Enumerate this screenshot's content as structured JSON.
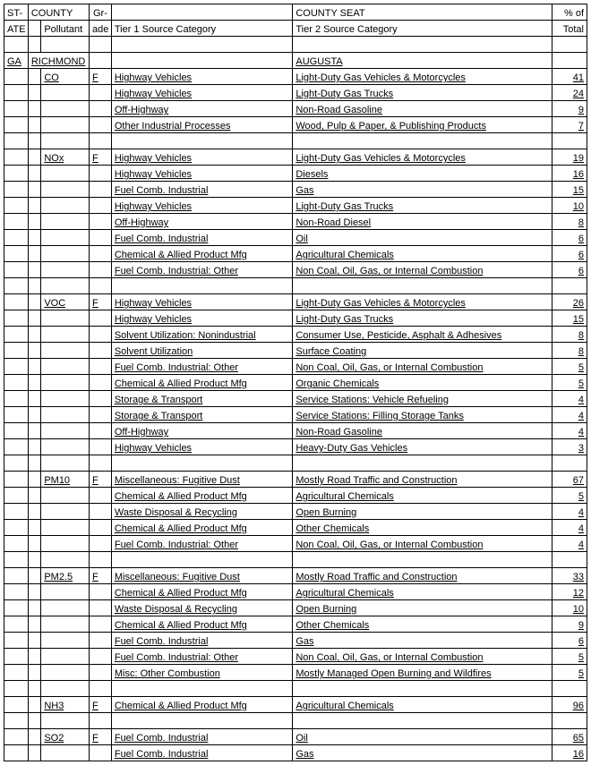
{
  "headers": {
    "state1": "ST-",
    "state2": "ATE",
    "county": "COUNTY",
    "pollutant": "Pollutant",
    "grade1": "Gr-",
    "grade2": "ade",
    "tier1": "Tier 1 Source Category",
    "county_seat": "COUNTY SEAT",
    "tier2": "Tier 2 Source Category",
    "pct1": "% of",
    "pct2": "Total"
  },
  "state": "GA",
  "county": "RICHMOND",
  "county_seat": "AUGUSTA",
  "groups": [
    {
      "pollutant": "CO",
      "grade": "F",
      "rows": [
        {
          "t1": "Highway Vehicles",
          "t2": "Light-Duty Gas Vehicles & Motorcycles",
          "p": "41"
        },
        {
          "t1": "Highway Vehicles",
          "t2": "Light-Duty Gas Trucks",
          "p": "24"
        },
        {
          "t1": "Off-Highway",
          "t2": "Non-Road Gasoline",
          "p": "9"
        },
        {
          "t1": "Other Industrial Processes",
          "t2": "Wood, Pulp & Paper, & Publishing Products",
          "p": "7"
        }
      ]
    },
    {
      "pollutant": "NOx",
      "grade": "F",
      "rows": [
        {
          "t1": "Highway Vehicles",
          "t2": "Light-Duty Gas Vehicles & Motorcycles",
          "p": "19"
        },
        {
          "t1": "Highway Vehicles",
          "t2": "Diesels",
          "p": "16"
        },
        {
          "t1": "Fuel Comb. Industrial",
          "t2": "Gas",
          "p": "15"
        },
        {
          "t1": "Highway Vehicles",
          "t2": "Light-Duty Gas Trucks",
          "p": "10"
        },
        {
          "t1": "Off-Highway",
          "t2": "Non-Road Diesel",
          "p": "8"
        },
        {
          "t1": "Fuel Comb. Industrial",
          "t2": "Oil",
          "p": "6"
        },
        {
          "t1": "Chemical & Allied Product Mfg",
          "t2": "Agricultural Chemicals",
          "p": "6"
        },
        {
          "t1": "Fuel Comb. Industrial: Other",
          "t2": "Non Coal, Oil, Gas, or Internal Combustion",
          "p": "6"
        }
      ]
    },
    {
      "pollutant": "VOC",
      "grade": "F",
      "rows": [
        {
          "t1": "Highway Vehicles",
          "t2": "Light-Duty Gas Vehicles & Motorcycles",
          "p": "26"
        },
        {
          "t1": "Highway Vehicles",
          "t2": "Light-Duty Gas Trucks",
          "p": "15"
        },
        {
          "t1": "Solvent Utilization: Nonindustrial",
          "t2": "Consumer Use, Pesticide, Asphalt & Adhesives",
          "p": "8"
        },
        {
          "t1": "Solvent Utilization",
          "t2": "Surface Coating",
          "p": "8"
        },
        {
          "t1": "Fuel Comb. Industrial: Other",
          "t2": "Non Coal, Oil, Gas, or Internal Combustion",
          "p": "5"
        },
        {
          "t1": "Chemical & Allied Product Mfg",
          "t2": "Organic Chemicals",
          "p": "5"
        },
        {
          "t1": "Storage & Transport",
          "t2": "Service Stations: Vehicle Refueling",
          "p": "4"
        },
        {
          "t1": "Storage & Transport",
          "t2": "Service Stations: Filling Storage Tanks",
          "p": "4"
        },
        {
          "t1": "Off-Highway",
          "t2": "Non-Road Gasoline",
          "p": "4"
        },
        {
          "t1": "Highway Vehicles",
          "t2": "Heavy-Duty Gas Vehicles",
          "p": "3"
        }
      ]
    },
    {
      "pollutant": "PM10",
      "grade": "F",
      "rows": [
        {
          "t1": "Miscellaneous: Fugitive Dust",
          "t2": "Mostly Road Traffic and Construction",
          "p": "67"
        },
        {
          "t1": "Chemical & Allied Product Mfg",
          "t2": "Agricultural Chemicals",
          "p": "5"
        },
        {
          "t1": "Waste Disposal & Recycling",
          "t2": "Open Burning",
          "p": "4"
        },
        {
          "t1": "Chemical & Allied Product Mfg",
          "t2": "Other Chemicals",
          "p": "4"
        },
        {
          "t1": "Fuel Comb. Industrial: Other",
          "t2": "Non Coal, Oil, Gas, or Internal Combustion",
          "p": "4"
        }
      ]
    },
    {
      "pollutant": "PM2.5",
      "grade": "F",
      "rows": [
        {
          "t1": "Miscellaneous: Fugitive Dust",
          "t2": "Mostly Road Traffic and Construction",
          "p": "33"
        },
        {
          "t1": "Chemical & Allied Product Mfg",
          "t2": "Agricultural Chemicals",
          "p": "12"
        },
        {
          "t1": "Waste Disposal & Recycling",
          "t2": "Open Burning",
          "p": "10"
        },
        {
          "t1": "Chemical & Allied Product Mfg",
          "t2": "Other Chemicals",
          "p": "9"
        },
        {
          "t1": "Fuel Comb. Industrial",
          "t2": "Gas",
          "p": "6"
        },
        {
          "t1": "Fuel Comb. Industrial: Other",
          "t2": "Non Coal, Oil, Gas, or Internal Combustion",
          "p": "5"
        },
        {
          "t1": "Misc: Other Combustion",
          "t2": "Mostly Managed Open Burning and Wildfires",
          "p": "5"
        }
      ]
    },
    {
      "pollutant": "NH3",
      "grade": "F",
      "rows": [
        {
          "t1": "Chemical & Allied Product Mfg",
          "t2": "Agricultural Chemicals",
          "p": "96"
        }
      ]
    },
    {
      "pollutant": "SO2",
      "grade": "F",
      "rows": [
        {
          "t1": "Fuel Comb. Industrial",
          "t2": "Oil",
          "p": "65"
        },
        {
          "t1": "Fuel Comb. Industrial",
          "t2": "Gas",
          "p": "16"
        }
      ]
    }
  ]
}
